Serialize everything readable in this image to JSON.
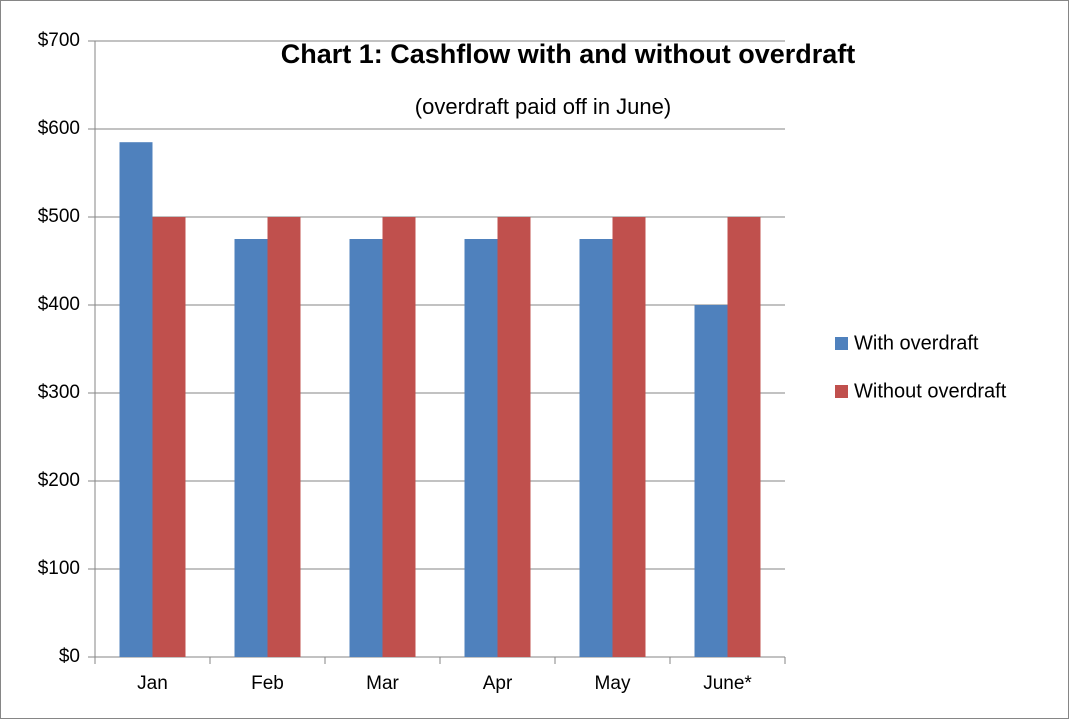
{
  "chart_data": {
    "type": "bar",
    "title": "Chart 1: Cashflow with and without overdraft",
    "subtitle": "(overdraft paid off in June)",
    "categories": [
      "Jan",
      "Feb",
      "Mar",
      "Apr",
      "May",
      "June*"
    ],
    "series": [
      {
        "name": "With overdraft",
        "color": "#4f81bd",
        "values": [
          585,
          475,
          475,
          475,
          475,
          400
        ]
      },
      {
        "name": "Without overdraft",
        "color": "#c0504d",
        "values": [
          500,
          500,
          500,
          500,
          500,
          500
        ]
      }
    ],
    "ylim": [
      0,
      700
    ],
    "yticks": [
      {
        "value": 0,
        "label": "$0"
      },
      {
        "value": 100,
        "label": "$100"
      },
      {
        "value": 200,
        "label": "$200"
      },
      {
        "value": 300,
        "label": "$300"
      },
      {
        "value": 400,
        "label": "$400"
      },
      {
        "value": 500,
        "label": "$500"
      },
      {
        "value": 600,
        "label": "$600"
      },
      {
        "value": 700,
        "label": "$700"
      }
    ],
    "grid": true,
    "legend": "right"
  }
}
